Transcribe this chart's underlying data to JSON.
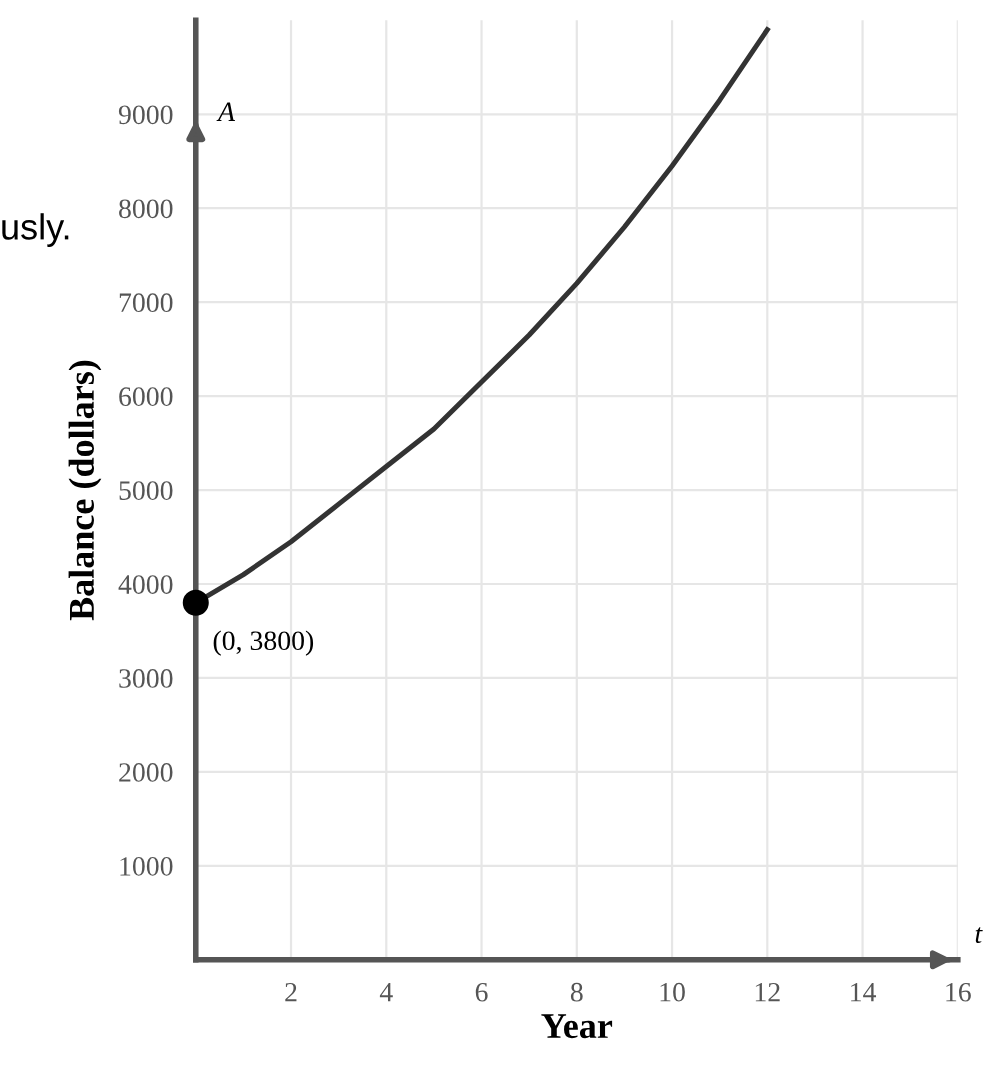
{
  "chart_data": {
    "type": "line",
    "xlabel": "Year",
    "ylabel": "Balance (dollars)",
    "series": [
      {
        "color": "#333333",
        "marker": "none",
        "x": [
          0,
          1,
          2,
          3,
          4,
          5,
          6,
          7,
          8,
          9,
          10,
          11,
          12
        ],
        "values": [
          3800,
          4100,
          4450,
          4850,
          5250,
          5650,
          6150,
          6650,
          7200,
          7800,
          8450,
          9150,
          9900
        ]
      },
      {
        "type": "scatter",
        "color": "#000000",
        "marker": "circle",
        "x": [
          0
        ],
        "values": [
          3800
        ]
      }
    ],
    "xlim": [
      0,
      16
    ],
    "ylim": [
      0,
      10000
    ],
    "xticks": [
      2,
      4,
      6,
      8,
      10,
      12,
      14,
      16
    ],
    "yticks": [
      1000,
      2000,
      3000,
      4000,
      5000,
      6000,
      7000,
      8000,
      9000
    ],
    "grid": true,
    "annotations": [
      {
        "text": "(0, 3800)",
        "x": 0,
        "y": 3800
      },
      "A",
      "t",
      "usly."
    ]
  }
}
